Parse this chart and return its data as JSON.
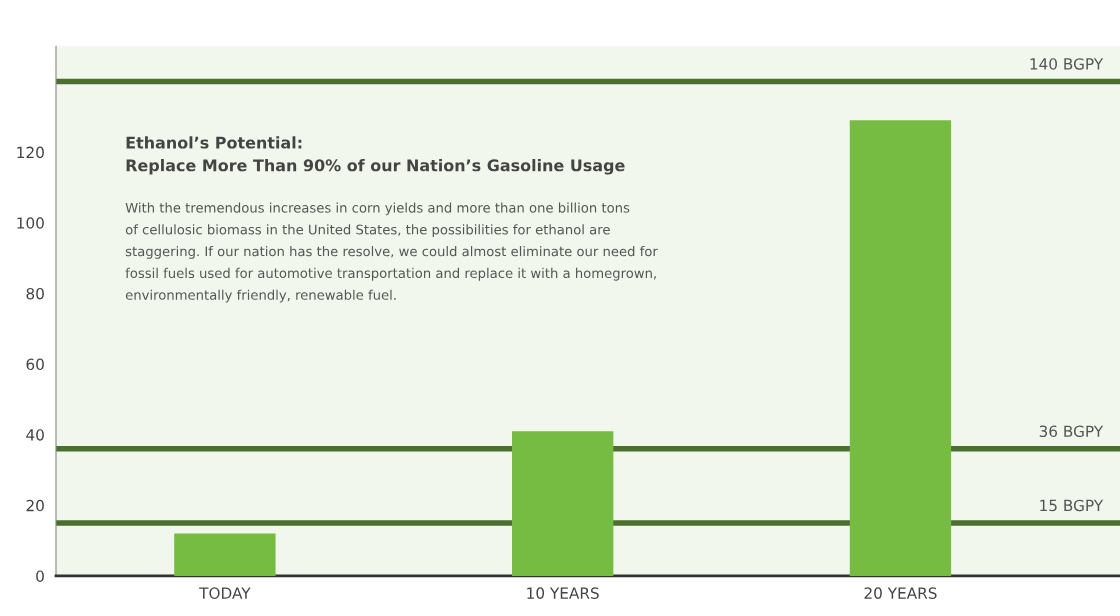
{
  "chart_data": {
    "type": "bar",
    "title": "Ethanol’s Potential:\nReplace More Than 90% of our Nation’s Gasoline Usage",
    "annotations": [
      "With the tremendous increases in corn yields and more than one billion tons\nof cellulosic biomass in the United States, the possibilities for ethanol are\nstaggering. If our nation has the resolve, we could almost eliminate our need for\nfossil fuels used for automotive transportation and replace it with a homegrown,\nenvironmentally friendly, renewable fuel."
    ],
    "categories": [
      "TODAY",
      "10 YEARS",
      "20 YEARS"
    ],
    "values": [
      12,
      41,
      129
    ],
    "color": "#76bc43",
    "ylim": [
      0,
      150
    ],
    "yticks": [
      0,
      20,
      40,
      60,
      80,
      100,
      120
    ],
    "grid": false,
    "ref_lines": [
      {
        "axis": "y",
        "value": 140,
        "label": "140 BGPY",
        "color": "#4a6f2e"
      },
      {
        "axis": "y",
        "value": 36,
        "label": "36 BGPY",
        "color": "#4a6f2e"
      },
      {
        "axis": "y",
        "value": 15,
        "label": "15 BGPY",
        "color": "#4a6f2e"
      }
    ]
  }
}
